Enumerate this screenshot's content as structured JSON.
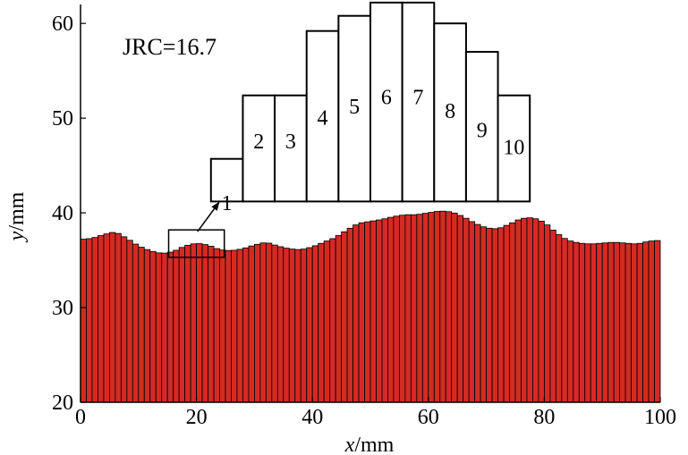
{
  "chart_data": {
    "type": "bar",
    "xlabel_var": "x",
    "xlabel_unit": "/mm",
    "ylabel_var": "y",
    "ylabel_unit": "/mm",
    "xlim": [
      0,
      100
    ],
    "ylim": [
      20,
      62
    ],
    "x_ticks": [
      0,
      20,
      40,
      60,
      80,
      100
    ],
    "y_ticks": [
      20,
      30,
      40,
      50,
      60
    ],
    "annotation": "JRC=16.7",
    "bar_color": "#d42a24",
    "bar_edge_color": "#000000",
    "profile": {
      "x": [
        0,
        2,
        4,
        6,
        8,
        10,
        12,
        14,
        16,
        18,
        20,
        22,
        24,
        26,
        28,
        30,
        32,
        34,
        36,
        38,
        40,
        42,
        44,
        46,
        48,
        50,
        52,
        54,
        56,
        58,
        60,
        62,
        64,
        66,
        68,
        70,
        72,
        74,
        76,
        78,
        80,
        82,
        84,
        86,
        88,
        90,
        92,
        94,
        96,
        98,
        100
      ],
      "y": [
        37.2,
        37.3,
        37.7,
        38.0,
        37.3,
        36.5,
        36.0,
        35.7,
        35.9,
        36.5,
        36.8,
        36.6,
        36.1,
        36.0,
        36.2,
        36.6,
        36.9,
        36.5,
        36.2,
        36.1,
        36.4,
        36.9,
        37.4,
        38.2,
        38.9,
        39.1,
        39.3,
        39.6,
        39.8,
        39.8,
        40.0,
        40.2,
        40.1,
        39.6,
        38.9,
        38.4,
        38.3,
        38.8,
        39.4,
        39.5,
        39.0,
        37.9,
        37.1,
        36.8,
        36.7,
        36.8,
        36.9,
        36.8,
        36.7,
        37.0,
        37.1
      ],
      "bar_count": 100
    },
    "inset_zone": {
      "x": [
        15.2,
        24.8
      ],
      "y": [
        35.3,
        38.2
      ]
    },
    "inset_histogram": {
      "categories": [
        "1",
        "2",
        "3",
        "4",
        "5",
        "6",
        "7",
        "8",
        "9",
        "10"
      ],
      "values": [
        45.7,
        52.4,
        52.4,
        59.2,
        60.8,
        62.2,
        62.2,
        60.0,
        57.0,
        52.4
      ],
      "x_edges": [
        22.5,
        28.0,
        33.5,
        39.0,
        44.5,
        50.0,
        55.5,
        61.0,
        66.5,
        72.0,
        77.5
      ],
      "base": 41.2,
      "label_y": [
        40.3,
        46.8,
        46.8,
        49.3,
        50.5,
        51.5,
        51.5,
        50.0,
        48.0,
        46.2
      ]
    }
  }
}
